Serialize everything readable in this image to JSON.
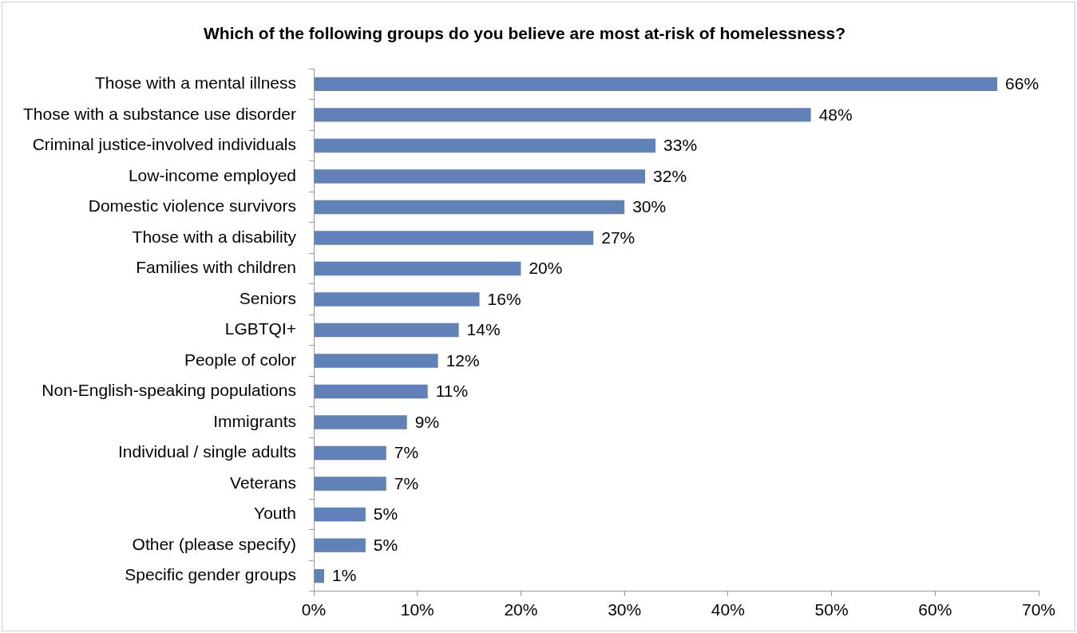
{
  "chart_data": {
    "type": "bar",
    "orientation": "horizontal",
    "title": "Which of the following groups do you believe are most at-risk of homelessness?",
    "categories": [
      "Those with a mental illness",
      "Those with a substance use disorder",
      "Criminal justice-involved individuals",
      "Low-income employed",
      "Domestic violence survivors",
      "Those with a disability",
      "Families with children",
      "Seniors",
      "LGBTQI+",
      "People of color",
      "Non-English-speaking populations",
      "Immigrants",
      "Individual / single adults",
      "Veterans",
      "Youth",
      "Other (please specify)",
      "Specific gender groups"
    ],
    "values": [
      66,
      48,
      33,
      32,
      30,
      27,
      20,
      16,
      14,
      12,
      11,
      9,
      7,
      7,
      5,
      5,
      1
    ],
    "value_labels": [
      "66%",
      "48%",
      "33%",
      "32%",
      "30%",
      "27%",
      "20%",
      "16%",
      "14%",
      "12%",
      "11%",
      "9%",
      "7%",
      "7%",
      "5%",
      "5%",
      "1%"
    ],
    "color": "#6182b8",
    "xlim": [
      0,
      70
    ],
    "xticks": [
      {
        "value": 0,
        "label": "0%"
      },
      {
        "value": 10,
        "label": "10%"
      },
      {
        "value": 20,
        "label": "20%"
      },
      {
        "value": 30,
        "label": "30%"
      },
      {
        "value": 40,
        "label": "40%"
      },
      {
        "value": 50,
        "label": "50%"
      },
      {
        "value": 60,
        "label": "60%"
      },
      {
        "value": 70,
        "label": "70%"
      }
    ],
    "grid": false,
    "legend": false
  }
}
